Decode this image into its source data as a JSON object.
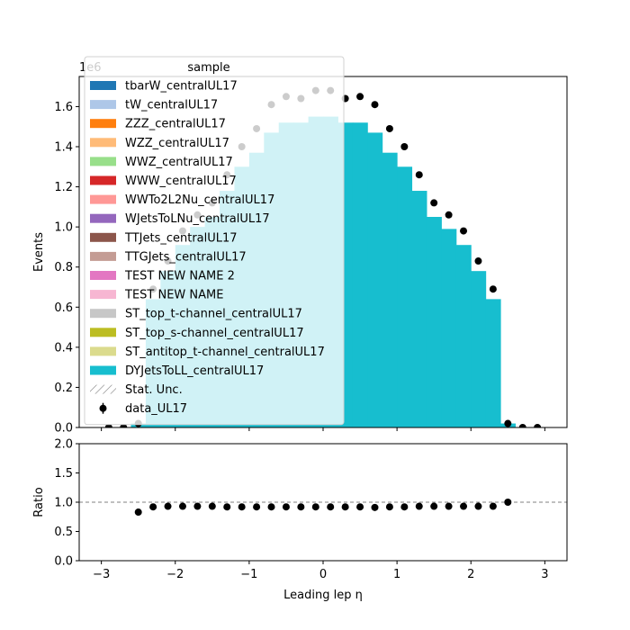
{
  "chart_data": [
    {
      "type": "bar",
      "panel": "main",
      "xlabel": "Leading lep η",
      "ylabel": "Events",
      "offset_text": "1e6",
      "xlim": [
        -3.3,
        3.3
      ],
      "ylim": [
        0,
        1.75
      ],
      "xticks": [
        -3,
        -2,
        -1,
        0,
        1,
        2,
        3
      ],
      "xtick_labels": [
        "−3",
        "−2",
        "−1",
        "0",
        "1",
        "2",
        "3"
      ],
      "yticks": [
        0.0,
        0.2,
        0.4,
        0.6,
        0.8,
        1.0,
        1.2,
        1.4,
        1.6
      ],
      "ytick_labels": [
        "0.0",
        "0.2",
        "0.4",
        "0.6",
        "0.8",
        "1.0",
        "1.2",
        "1.4",
        "1.6"
      ],
      "legend": {
        "title": "sample",
        "placement": "upper-left",
        "entries": [
          {
            "label": "tbarW_centralUL17",
            "color": "#1f77b4",
            "kind": "patch"
          },
          {
            "label": "tW_centralUL17",
            "color": "#aec7e8",
            "kind": "patch"
          },
          {
            "label": "ZZZ_centralUL17",
            "color": "#ff7f0e",
            "kind": "patch"
          },
          {
            "label": "WZZ_centralUL17",
            "color": "#ffbb78",
            "kind": "patch"
          },
          {
            "label": "WWZ_centralUL17",
            "color": "#98df8a",
            "kind": "patch"
          },
          {
            "label": "WWW_centralUL17",
            "color": "#d62728",
            "kind": "patch"
          },
          {
            "label": "WWTo2L2Nu_centralUL17",
            "color": "#ff9896",
            "kind": "patch"
          },
          {
            "label": "WJetsToLNu_centralUL17",
            "color": "#9467bd",
            "kind": "patch"
          },
          {
            "label": "TTJets_centralUL17",
            "color": "#8c564b",
            "kind": "patch"
          },
          {
            "label": "TTGJets_centralUL17",
            "color": "#c49c94",
            "kind": "patch"
          },
          {
            "label": "TEST NEW NAME 2",
            "color": "#e377c2",
            "kind": "patch"
          },
          {
            "label": "TEST NEW NAME",
            "color": "#f7b6d2",
            "kind": "patch"
          },
          {
            "label": "ST_top_t-channel_centralUL17",
            "color": "#c7c7c7",
            "kind": "patch"
          },
          {
            "label": "ST_top_s-channel_centralUL17",
            "color": "#bcbd22",
            "kind": "patch"
          },
          {
            "label": "ST_antitop_t-channel_centralUL17",
            "color": "#dbdb8d",
            "kind": "patch"
          },
          {
            "label": "DYJetsToLL_centralUL17",
            "color": "#17becf",
            "kind": "patch"
          },
          {
            "label": "Stat. Unc.",
            "color": "#808080",
            "kind": "hatch"
          },
          {
            "label": "data_UL17",
            "color": "#000000",
            "kind": "errorbar"
          }
        ]
      },
      "mc_color": "#17becf",
      "bin_edges": [
        -2.6,
        -2.4,
        -2.2,
        -2.0,
        -1.8,
        -1.6,
        -1.4,
        -1.2,
        -1.0,
        -0.8,
        -0.6,
        -0.4,
        -0.2,
        0.0,
        0.2,
        0.4,
        0.6,
        0.8,
        1.0,
        1.2,
        1.4,
        1.6,
        1.8,
        2.0,
        2.2,
        2.4,
        2.6
      ],
      "series": [
        {
          "name": "DYJetsToLL_centralUL17",
          "values": [
            0.02,
            0.64,
            0.78,
            0.91,
            1.0,
            1.05,
            1.18,
            1.3,
            1.37,
            1.47,
            1.52,
            1.52,
            1.55,
            1.55,
            1.52,
            1.52,
            1.47,
            1.37,
            1.3,
            1.18,
            1.05,
            0.99,
            0.91,
            0.78,
            0.64,
            0.02
          ]
        },
        {
          "name": "data_UL17",
          "x": [
            -2.9,
            -2.7,
            -2.5,
            -2.3,
            -2.1,
            -1.9,
            -1.7,
            -1.5,
            -1.3,
            -1.1,
            -0.9,
            -0.7,
            -0.5,
            -0.3,
            -0.1,
            0.1,
            0.3,
            0.5,
            0.7,
            0.9,
            1.1,
            1.3,
            1.5,
            1.7,
            1.9,
            2.1,
            2.3,
            2.5,
            2.7,
            2.9
          ],
          "values": [
            0.0,
            0.0,
            0.02,
            0.69,
            0.83,
            0.98,
            1.06,
            1.12,
            1.26,
            1.4,
            1.49,
            1.61,
            1.65,
            1.64,
            1.68,
            1.68,
            1.64,
            1.65,
            1.61,
            1.49,
            1.4,
            1.26,
            1.12,
            1.06,
            0.98,
            0.83,
            0.69,
            0.02,
            0.0,
            0.0
          ]
        }
      ]
    },
    {
      "type": "scatter",
      "panel": "ratio",
      "xlabel": "Leading lep η",
      "ylabel": "Ratio",
      "xlim": [
        -3.3,
        3.3
      ],
      "ylim": [
        0.0,
        2.0
      ],
      "xticks": [
        -3,
        -2,
        -1,
        0,
        1,
        2,
        3
      ],
      "xtick_labels": [
        "−3",
        "−2",
        "−1",
        "0",
        "1",
        "2",
        "3"
      ],
      "yticks": [
        0.0,
        0.5,
        1.0,
        1.5,
        2.0
      ],
      "ytick_labels": [
        "0.0",
        "0.5",
        "1.0",
        "1.5",
        "2.0"
      ],
      "reference_line": 1.0,
      "series": [
        {
          "name": "ratio",
          "x": [
            -2.5,
            -2.3,
            -2.1,
            -1.9,
            -1.7,
            -1.5,
            -1.3,
            -1.1,
            -0.9,
            -0.7,
            -0.5,
            -0.3,
            -0.1,
            0.1,
            0.3,
            0.5,
            0.7,
            0.9,
            1.1,
            1.3,
            1.5,
            1.7,
            1.9,
            2.1,
            2.3,
            2.5
          ],
          "values": [
            0.83,
            0.92,
            0.93,
            0.93,
            0.93,
            0.93,
            0.92,
            0.92,
            0.92,
            0.92,
            0.92,
            0.92,
            0.92,
            0.92,
            0.92,
            0.92,
            0.91,
            0.92,
            0.92,
            0.93,
            0.93,
            0.93,
            0.93,
            0.93,
            0.93,
            1.0
          ]
        }
      ]
    }
  ]
}
